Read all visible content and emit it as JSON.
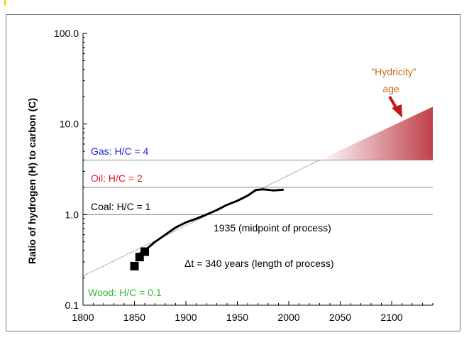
{
  "chart_data": {
    "type": "line",
    "title": "",
    "xlabel": "",
    "ylabel": "Ratio of hydrogen (H) to carbon (C)",
    "y_scale": "log",
    "xlim": [
      1800,
      2140
    ],
    "ylim": [
      0.1,
      100
    ],
    "x_ticks": [
      1800,
      1850,
      1900,
      1950,
      2000,
      2050,
      2100
    ],
    "x_tick_labels": [
      "1800",
      "1850",
      "1900",
      "1950",
      "2000",
      "2050",
      "2100"
    ],
    "y_ticks": [
      0.1,
      1,
      10,
      100
    ],
    "y_tick_labels": [
      "0.1",
      "1.0",
      "10.0",
      "100.0"
    ],
    "grid": false,
    "series": [
      {
        "kind": "measured-line",
        "color": "#000000",
        "points": [
          [
            1855,
            0.37
          ],
          [
            1862,
            0.42
          ],
          [
            1870,
            0.5
          ],
          [
            1880,
            0.6
          ],
          [
            1890,
            0.72
          ],
          [
            1900,
            0.82
          ],
          [
            1910,
            0.9
          ],
          [
            1920,
            1.0
          ],
          [
            1930,
            1.12
          ],
          [
            1940,
            1.28
          ],
          [
            1950,
            1.42
          ],
          [
            1960,
            1.62
          ],
          [
            1968,
            1.87
          ],
          [
            1975,
            1.9
          ],
          [
            1985,
            1.85
          ],
          [
            1995,
            1.88
          ]
        ]
      },
      {
        "kind": "markers",
        "marker": "square",
        "color": "#000000",
        "points": [
          [
            1850,
            0.27
          ],
          [
            1855,
            0.34
          ],
          [
            1860,
            0.39
          ]
        ]
      },
      {
        "kind": "trend-line",
        "color": "#888888",
        "points": [
          [
            1800,
            0.21
          ],
          [
            2030,
            4.0
          ]
        ]
      }
    ],
    "reference_lines": [
      {
        "label": "Gas: H/C = 4",
        "y": 4,
        "color": "#1f1fd0"
      },
      {
        "label": "Oil: H/C = 2",
        "y": 2,
        "color": "#e0201b"
      },
      {
        "label": "Coal: H/C = 1",
        "y": 1,
        "color": "#000000"
      },
      {
        "label": "Wood: H/C = 0.1",
        "y": 0.1,
        "color": "#2eb82e"
      }
    ],
    "shaded_region": {
      "x_start": 2030,
      "x_end": 2140,
      "y_bottom": 4,
      "y_top_at_start": 4,
      "y_top_at_end": 15.5,
      "color": "#c0404a"
    },
    "annotations": [
      {
        "text": "1935 (midpoint of process)",
        "color": "#000000"
      },
      {
        "text": "Δt = 340 years (length of process)",
        "color": "#000000"
      },
      {
        "text": "“Hydricity”",
        "color": "#c96a14"
      },
      {
        "text": "age",
        "color": "#c96a14"
      }
    ],
    "arrow_color": "#c0161c"
  }
}
